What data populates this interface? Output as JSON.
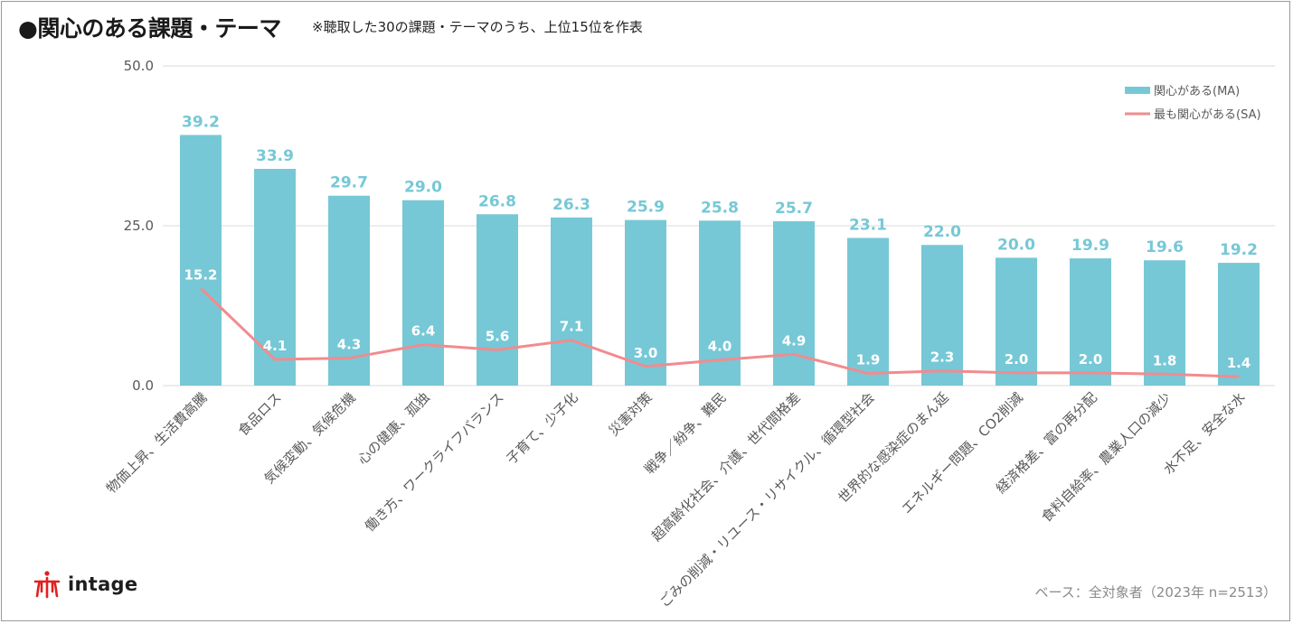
{
  "header": {
    "title": "●関心のある課題・テーマ",
    "subtitle": "※聴取した30の課題・テーマのうち、上位15位を作表"
  },
  "footer": {
    "base_note": "ベース：全対象者（2023年 n=2513）",
    "logo_text": "intage"
  },
  "colors": {
    "bar": "#76c8d6",
    "bar_label": "#76c8d6",
    "line": "#f28b8e",
    "line_label": "#ffffff",
    "grid": "#d9d9d9",
    "axis_text": "#595959"
  },
  "chart_data": {
    "type": "bar",
    "categories": [
      "物価上昇、生活費高騰",
      "食品ロス",
      "気候変動、気候危機",
      "心の健康、孤独",
      "働き方、ワークライフバランス",
      "子育て、少子化",
      "災害対策",
      "戦争／紛争、難民",
      "超高齢化社会、介護、世代間格差",
      "ごみの削減・リユース・リサイクル、循環型社会",
      "世界的な感染症のまん延",
      "エネルギー問題、CO2削減",
      "経済格差、富の再分配",
      "食料自給率、農業人口の減少",
      "水不足、安全な水"
    ],
    "series": [
      {
        "name": "関心がある(MA)",
        "type": "bar",
        "values": [
          39.2,
          33.9,
          29.7,
          29.0,
          26.8,
          26.3,
          25.9,
          25.8,
          25.7,
          23.1,
          22.0,
          20.0,
          19.9,
          19.6,
          19.2
        ],
        "labels": [
          "39.2",
          "33.9",
          "29.7",
          "29.0",
          "26.8",
          "26.3",
          "25.9",
          "25.8",
          "25.7",
          "23.1",
          "22.0",
          "20.0",
          "19.9",
          "19.6",
          "19.2"
        ]
      },
      {
        "name": "最も関心がある(SA)",
        "type": "line",
        "values": [
          15.2,
          4.1,
          4.3,
          6.4,
          5.6,
          7.1,
          3.0,
          4.0,
          4.9,
          1.9,
          2.3,
          2.0,
          2.0,
          1.8,
          1.4
        ],
        "labels": [
          "15.2",
          "4.1",
          "4.3",
          "6.4",
          "5.6",
          "7.1",
          "3.0",
          "4.0",
          "4.9",
          "1.9",
          "2.3",
          "2.0",
          "2.0",
          "1.8",
          "1.4"
        ]
      }
    ],
    "ylim": [
      0,
      50
    ],
    "yticks": [
      "0.0",
      "25.0",
      "50.0"
    ],
    "ytick_values": [
      0,
      25,
      50
    ],
    "grid": true,
    "legend_position": "top-right"
  }
}
